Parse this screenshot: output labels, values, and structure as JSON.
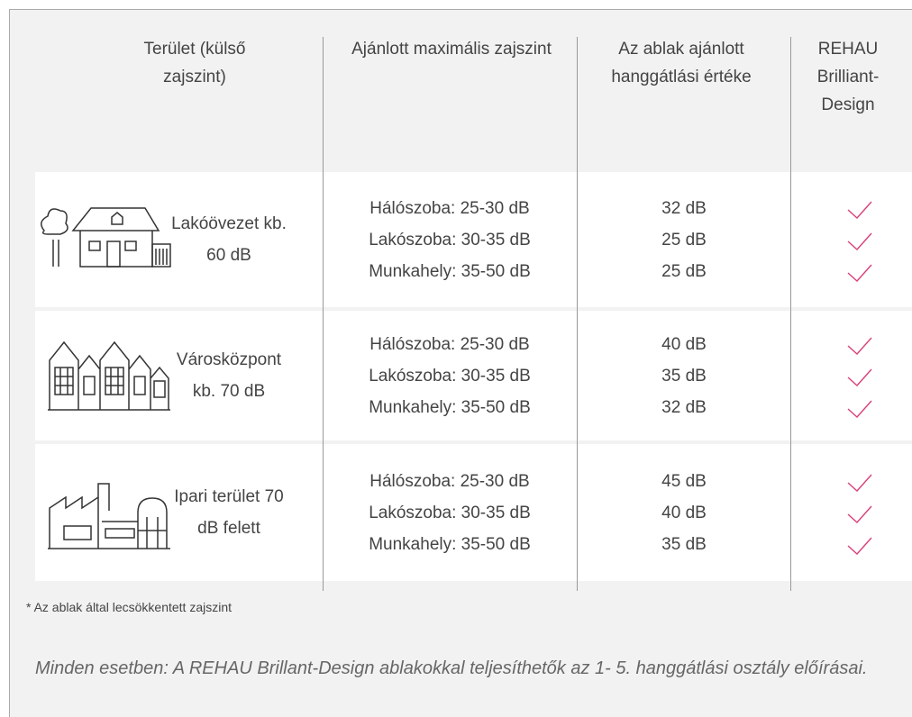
{
  "table": {
    "headers": [
      "Terület (külső zajszint)",
      "Ajánlott maximális zajszint",
      "Az ablak ajánlott hanggátlási értéke",
      "REHAU Brilliant-Design"
    ],
    "rows": [
      {
        "area": "Lakóövezet kb. 60 dB",
        "items": [
          {
            "level": "Hálószoba: 25-30 dB",
            "value": "32 dB"
          },
          {
            "level": "Lakószoba: 30-35 dB",
            "value": "25 dB"
          },
          {
            "level": "Munkahely: 35-50 dB",
            "value": "25 dB"
          }
        ]
      },
      {
        "area": "Városközpont kb. 70 dB",
        "items": [
          {
            "level": "Hálószoba: 25-30 dB",
            "value": "40 dB"
          },
          {
            "level": "Lakószoba: 30-35 dB",
            "value": "35 dB"
          },
          {
            "level": "Munkahely: 35-50 dB",
            "value": "32 dB"
          }
        ]
      },
      {
        "area": "Ipari terület 70 dB felett",
        "items": [
          {
            "level": "Hálószoba: 25-30 dB",
            "value": "45 dB"
          },
          {
            "level": "Lakószoba: 30-35 dB",
            "value": "40 dB"
          },
          {
            "level": "Munkahely: 35-50 dB",
            "value": "35 dB"
          }
        ]
      }
    ]
  },
  "footnote": "* Az ablak által lecsökkentett zajszint",
  "note": "Minden esetben: A REHAU Brillant-Design ablakokkal teljesíthetők az 1- 5. hanggátlási osztály előírásai."
}
